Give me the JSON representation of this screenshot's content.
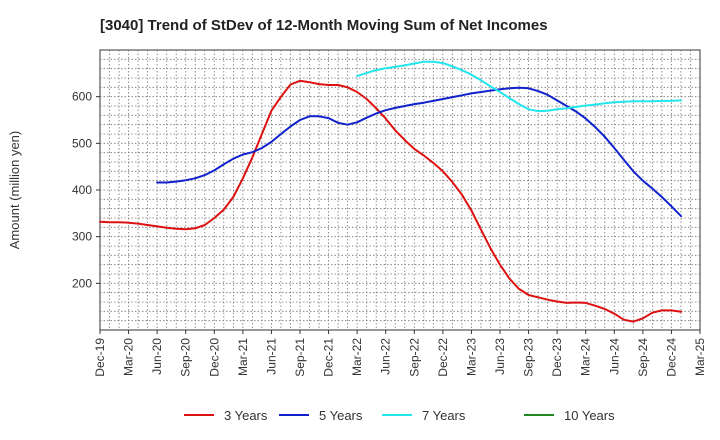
{
  "chart_data": {
    "type": "line",
    "title": "[3040]  Trend of StDev of 12-Month Moving Sum of Net Incomes",
    "ylabel": "Amount (million yen)",
    "xlabel": "",
    "ylim": [
      100,
      700
    ],
    "yticks": [
      200,
      300,
      400,
      500,
      600
    ],
    "xlim": [
      "2019-12",
      "2025-03"
    ],
    "xticks": [
      "Dec-19",
      "Mar-20",
      "Jun-20",
      "Sep-20",
      "Dec-20",
      "Mar-21",
      "Jun-21",
      "Sep-21",
      "Dec-21",
      "Mar-22",
      "Jun-22",
      "Sep-22",
      "Dec-22",
      "Mar-23",
      "Jun-23",
      "Sep-23",
      "Dec-23",
      "Mar-24",
      "Jun-24",
      "Sep-24",
      "Dec-24",
      "Mar-25"
    ],
    "grid": true,
    "legend_position": "bottom",
    "series": [
      {
        "name": "3 Years",
        "color": "#dd1111",
        "points": [
          [
            "2019-12",
            332
          ],
          [
            "2020-01",
            331
          ],
          [
            "2020-02",
            331
          ],
          [
            "2020-03",
            330
          ],
          [
            "2020-04",
            328
          ],
          [
            "2020-05",
            325
          ],
          [
            "2020-06",
            322
          ],
          [
            "2020-07",
            319
          ],
          [
            "2020-08",
            317
          ],
          [
            "2020-09",
            316
          ],
          [
            "2020-10",
            318
          ],
          [
            "2020-11",
            325
          ],
          [
            "2020-12",
            340
          ],
          [
            "2021-01",
            358
          ],
          [
            "2021-02",
            385
          ],
          [
            "2021-03",
            425
          ],
          [
            "2021-04",
            470
          ],
          [
            "2021-05",
            520
          ],
          [
            "2021-06",
            570
          ],
          [
            "2021-07",
            600
          ],
          [
            "2021-08",
            626
          ],
          [
            "2021-09",
            634
          ],
          [
            "2021-10",
            631
          ],
          [
            "2021-11",
            627
          ],
          [
            "2021-12",
            625
          ],
          [
            "2022-01",
            625
          ],
          [
            "2022-02",
            620
          ],
          [
            "2022-03",
            610
          ],
          [
            "2022-04",
            595
          ],
          [
            "2022-05",
            575
          ],
          [
            "2022-06",
            553
          ],
          [
            "2022-07",
            528
          ],
          [
            "2022-08",
            507
          ],
          [
            "2022-09",
            488
          ],
          [
            "2022-10",
            474
          ],
          [
            "2022-11",
            458
          ],
          [
            "2022-12",
            440
          ],
          [
            "2023-01",
            417
          ],
          [
            "2023-02",
            390
          ],
          [
            "2023-03",
            356
          ],
          [
            "2023-04",
            315
          ],
          [
            "2023-05",
            275
          ],
          [
            "2023-06",
            240
          ],
          [
            "2023-07",
            210
          ],
          [
            "2023-08",
            188
          ],
          [
            "2023-09",
            175
          ],
          [
            "2023-10",
            170
          ],
          [
            "2023-11",
            165
          ],
          [
            "2023-12",
            161
          ],
          [
            "2024-01",
            158
          ],
          [
            "2024-02",
            159
          ],
          [
            "2024-03",
            158
          ],
          [
            "2024-04",
            152
          ],
          [
            "2024-05",
            145
          ],
          [
            "2024-06",
            135
          ],
          [
            "2024-07",
            122
          ],
          [
            "2024-08",
            118
          ],
          [
            "2024-09",
            125
          ],
          [
            "2024-10",
            137
          ],
          [
            "2024-11",
            142
          ],
          [
            "2024-12",
            142
          ],
          [
            "2025-01",
            139
          ]
        ]
      },
      {
        "name": "5 Years",
        "color": "#1122cc",
        "points": [
          [
            "2020-06",
            416
          ],
          [
            "2020-07",
            416
          ],
          [
            "2020-08",
            418
          ],
          [
            "2020-09",
            421
          ],
          [
            "2020-10",
            425
          ],
          [
            "2020-11",
            432
          ],
          [
            "2020-12",
            442
          ],
          [
            "2021-01",
            455
          ],
          [
            "2021-02",
            467
          ],
          [
            "2021-03",
            476
          ],
          [
            "2021-04",
            481
          ],
          [
            "2021-05",
            490
          ],
          [
            "2021-06",
            503
          ],
          [
            "2021-07",
            520
          ],
          [
            "2021-08",
            536
          ],
          [
            "2021-09",
            550
          ],
          [
            "2021-10",
            558
          ],
          [
            "2021-11",
            558
          ],
          [
            "2021-12",
            554
          ],
          [
            "2022-01",
            544
          ],
          [
            "2022-02",
            540
          ],
          [
            "2022-03",
            545
          ],
          [
            "2022-04",
            555
          ],
          [
            "2022-05",
            564
          ],
          [
            "2022-06",
            571
          ],
          [
            "2022-07",
            576
          ],
          [
            "2022-08",
            580
          ],
          [
            "2022-09",
            584
          ],
          [
            "2022-10",
            587
          ],
          [
            "2022-11",
            591
          ],
          [
            "2022-12",
            595
          ],
          [
            "2023-01",
            599
          ],
          [
            "2023-02",
            603
          ],
          [
            "2023-03",
            607
          ],
          [
            "2023-04",
            610
          ],
          [
            "2023-05",
            613
          ],
          [
            "2023-06",
            616
          ],
          [
            "2023-07",
            618
          ],
          [
            "2023-08",
            619
          ],
          [
            "2023-09",
            618
          ],
          [
            "2023-10",
            612
          ],
          [
            "2023-11",
            604
          ],
          [
            "2023-12",
            592
          ],
          [
            "2024-01",
            580
          ],
          [
            "2024-02",
            568
          ],
          [
            "2024-03",
            553
          ],
          [
            "2024-04",
            535
          ],
          [
            "2024-05",
            514
          ],
          [
            "2024-06",
            490
          ],
          [
            "2024-07",
            465
          ],
          [
            "2024-08",
            440
          ],
          [
            "2024-09",
            420
          ],
          [
            "2024-10",
            403
          ],
          [
            "2024-11",
            385
          ],
          [
            "2024-12",
            365
          ],
          [
            "2025-01",
            344
          ]
        ]
      },
      {
        "name": "7 Years",
        "color": "#22e5ee",
        "points": [
          [
            "2022-03",
            644
          ],
          [
            "2022-04",
            651
          ],
          [
            "2022-05",
            657
          ],
          [
            "2022-06",
            661
          ],
          [
            "2022-07",
            664
          ],
          [
            "2022-08",
            667
          ],
          [
            "2022-09",
            671
          ],
          [
            "2022-10",
            675
          ],
          [
            "2022-11",
            675
          ],
          [
            "2022-12",
            672
          ],
          [
            "2023-01",
            665
          ],
          [
            "2023-02",
            657
          ],
          [
            "2023-03",
            647
          ],
          [
            "2023-04",
            635
          ],
          [
            "2023-05",
            622
          ],
          [
            "2023-06",
            610
          ],
          [
            "2023-07",
            597
          ],
          [
            "2023-08",
            584
          ],
          [
            "2023-09",
            573
          ],
          [
            "2023-10",
            569
          ],
          [
            "2023-11",
            570
          ],
          [
            "2023-12",
            573
          ],
          [
            "2024-01",
            575
          ],
          [
            "2024-02",
            578
          ],
          [
            "2024-03",
            581
          ],
          [
            "2024-04",
            583
          ],
          [
            "2024-05",
            586
          ],
          [
            "2024-06",
            588
          ],
          [
            "2024-07",
            589
          ],
          [
            "2024-08",
            590
          ],
          [
            "2024-09",
            590
          ],
          [
            "2024-10",
            590
          ],
          [
            "2024-11",
            591
          ],
          [
            "2024-12",
            591
          ],
          [
            "2025-01",
            592
          ]
        ]
      },
      {
        "name": "10 Years",
        "color": "#228822",
        "points": []
      }
    ]
  }
}
